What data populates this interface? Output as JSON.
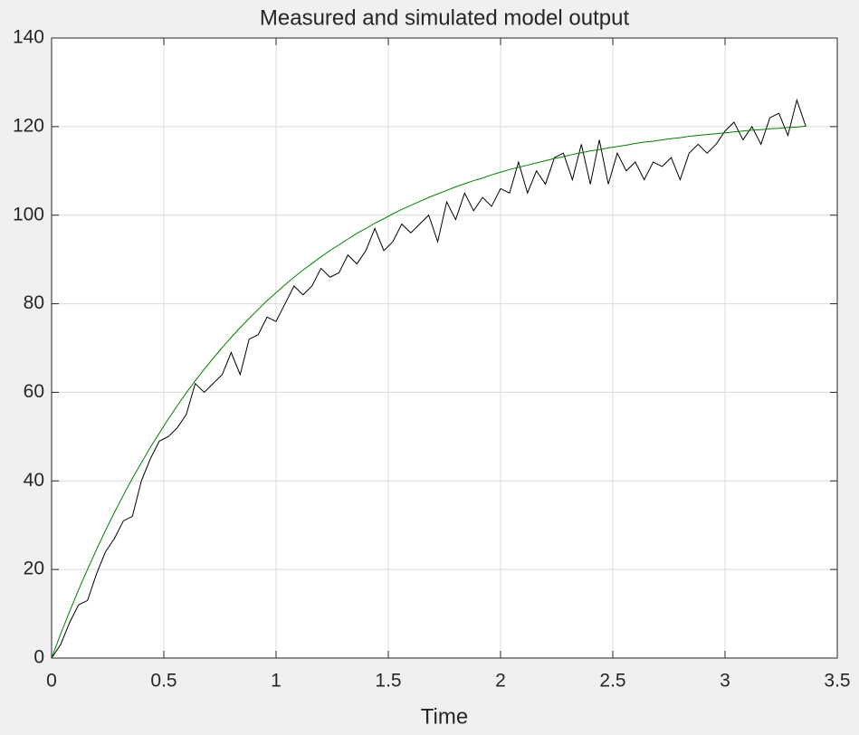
{
  "chart_data": {
    "type": "line",
    "title": "Measured and simulated model output",
    "xlabel": "Time",
    "x": [
      0,
      0.04,
      0.08,
      0.12,
      0.16,
      0.2,
      0.24,
      0.28,
      0.32,
      0.36,
      0.4,
      0.44,
      0.48,
      0.52,
      0.56,
      0.6,
      0.64,
      0.68,
      0.72,
      0.76,
      0.8,
      0.84,
      0.88,
      0.92,
      0.96,
      1,
      1.04,
      1.08,
      1.12,
      1.16,
      1.2,
      1.24,
      1.28,
      1.32,
      1.36,
      1.4,
      1.44,
      1.48,
      1.52,
      1.56,
      1.6,
      1.64,
      1.68,
      1.72,
      1.76,
      1.8,
      1.84,
      1.88,
      1.92,
      1.96,
      2,
      2.04,
      2.08,
      2.12,
      2.16,
      2.2,
      2.24,
      2.28,
      2.32,
      2.36,
      2.4,
      2.44,
      2.48,
      2.52,
      2.56,
      2.6,
      2.64,
      2.68,
      2.72,
      2.76,
      2.8,
      2.84,
      2.88,
      2.92,
      2.96,
      3,
      3.04,
      3.08,
      3.12,
      3.16,
      3.2,
      3.24,
      3.28,
      3.32,
      3.36
    ],
    "series": [
      {
        "color": "#000000",
        "values": [
          0,
          3,
          8,
          12,
          13,
          19,
          24,
          27,
          31,
          32,
          40,
          45,
          49,
          50,
          52,
          55,
          62,
          60,
          62,
          64,
          69,
          64,
          72,
          73,
          77,
          76,
          80,
          84,
          82,
          84,
          88,
          86,
          87,
          91,
          89,
          92,
          97,
          92,
          94,
          98,
          96,
          98,
          100,
          94,
          103,
          99,
          105,
          101,
          104,
          102,
          106,
          105,
          112,
          105,
          110,
          107,
          113,
          114,
          108,
          116,
          107,
          117,
          107,
          114,
          110,
          112,
          108,
          112,
          111,
          113,
          108,
          114,
          116,
          114,
          116,
          119,
          121,
          117,
          120,
          116,
          122,
          123,
          118,
          126,
          120
        ]
      },
      {
        "color": "#008000",
        "values": [
          0,
          5.4,
          10.5,
          15.4,
          20.0,
          24.5,
          28.8,
          32.9,
          36.8,
          40.6,
          44.1,
          47.6,
          50.8,
          54.0,
          57.0,
          59.9,
          62.6,
          65.2,
          67.7,
          70.1,
          72.4,
          74.6,
          76.7,
          78.7,
          80.7,
          82.5,
          84.3,
          86.0,
          87.6,
          89.1,
          90.6,
          92.0,
          93.3,
          94.6,
          95.9,
          97.0,
          98.2,
          99.2,
          100.3,
          101.3,
          102.2,
          103.1,
          104.0,
          104.8,
          105.6,
          106.4,
          107.1,
          107.8,
          108.4,
          109.1,
          109.7,
          110.3,
          110.8,
          111.3,
          111.8,
          112.3,
          112.8,
          113.2,
          113.7,
          114.1,
          114.5,
          114.8,
          115.2,
          115.5,
          115.8,
          116.2,
          116.5,
          116.7,
          117.0,
          117.3,
          117.5,
          117.8,
          118.0,
          118.2,
          118.4,
          118.6,
          118.8,
          119.0,
          119.2,
          119.3,
          119.5,
          119.6,
          119.8,
          119.9,
          120.1
        ]
      }
    ],
    "xlim": [
      0,
      3.5
    ],
    "xticks": [
      0,
      0.5,
      1,
      1.5,
      2,
      2.5,
      3,
      3.5
    ],
    "ylim": [
      0,
      140
    ],
    "yticks": [
      0,
      20,
      40,
      60,
      80,
      100,
      120,
      140
    ],
    "grid": true
  }
}
